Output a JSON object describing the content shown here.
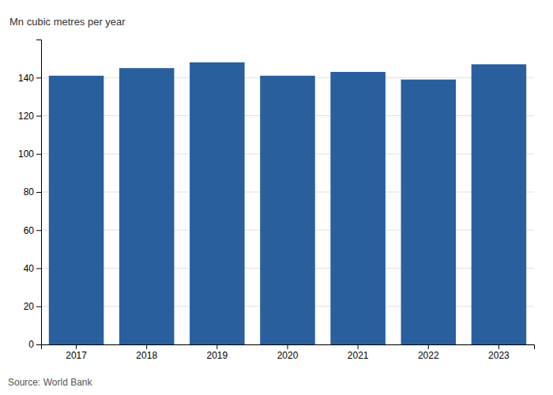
{
  "chart_data": {
    "type": "bar",
    "ylabel": "Mn cubic metres per year",
    "source": "Source: World Bank",
    "categories": [
      "2017",
      "2018",
      "2019",
      "2020",
      "2021",
      "2022",
      "2023"
    ],
    "values": [
      141,
      145,
      148,
      141,
      143,
      139,
      147
    ],
    "color": "#2a5f9e",
    "ylim": [
      0,
      160
    ],
    "yticks": [
      0,
      20,
      40,
      60,
      80,
      100,
      120,
      140
    ],
    "grid": true
  }
}
